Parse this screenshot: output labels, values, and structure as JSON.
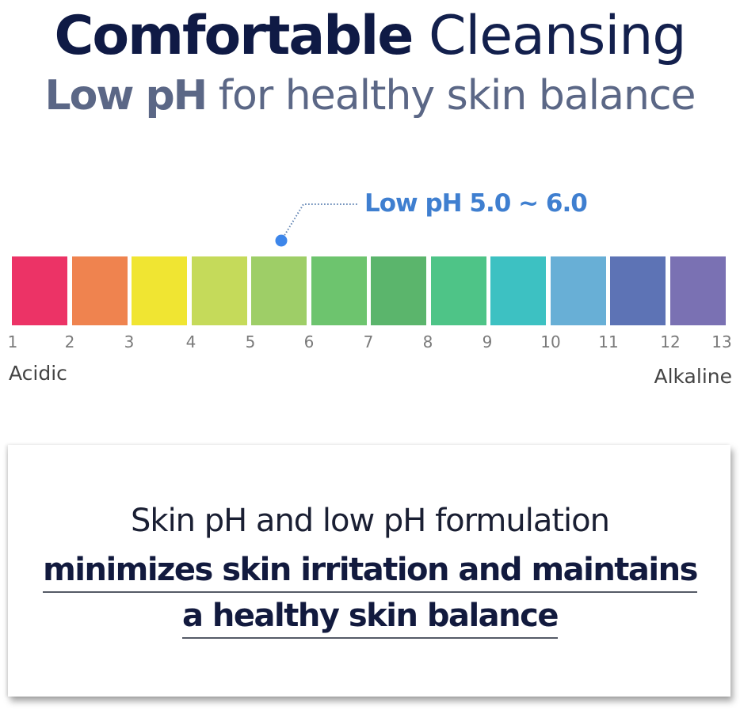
{
  "headline": {
    "line1_bold": "Comfortable",
    "line1_light": "Cleansing",
    "line2_bold": "Low pH",
    "line2_light": "for healthy skin balance"
  },
  "callout": {
    "label": "Low pH 5.0 ~ 6.0",
    "color": "#3f7fd0",
    "marker_ph": 5.5
  },
  "scale": {
    "ticks": [
      "1",
      "2",
      "3",
      "4",
      "5",
      "6",
      "7",
      "8",
      "9",
      "10",
      "11",
      "12",
      "13"
    ],
    "swatches": [
      {
        "range": "1-2",
        "color": "#ec3366"
      },
      {
        "range": "2-3",
        "color": "#ef834f"
      },
      {
        "range": "3-4",
        "color": "#f0e532"
      },
      {
        "range": "4-5",
        "color": "#c5da5a"
      },
      {
        "range": "5-6",
        "color": "#9ece67"
      },
      {
        "range": "6-7",
        "color": "#6dc46e"
      },
      {
        "range": "7-8",
        "color": "#5bb56c"
      },
      {
        "range": "8-9",
        "color": "#4ec487"
      },
      {
        "range": "9-10",
        "color": "#3dc1c2"
      },
      {
        "range": "10-11",
        "color": "#68afd6"
      },
      {
        "range": "11-12",
        "color": "#5d73b5"
      },
      {
        "range": "12-13",
        "color": "#7a71b3"
      }
    ],
    "left_label": "Acidic",
    "right_label": "Alkaline"
  },
  "summary": {
    "line1": "Skin pH and low pH formulation",
    "line2": "minimizes skin irritation and maintains",
    "line3": "a healthy skin balance"
  }
}
